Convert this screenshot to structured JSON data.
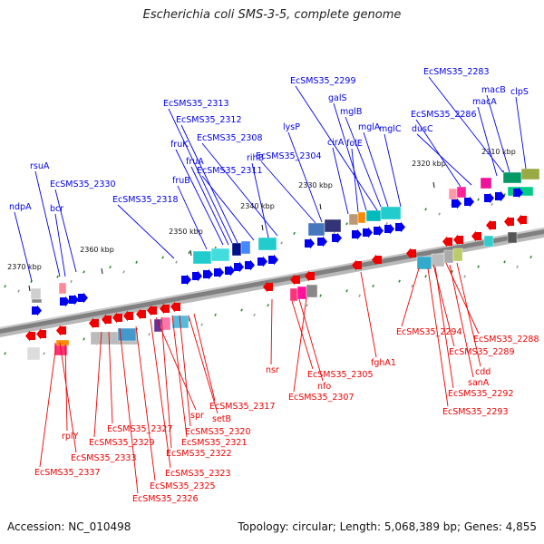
{
  "title": "Escherichia coli SMS-3-5, complete genome",
  "footer": {
    "accession": "Accession: NC_010498",
    "topology": "Topology: circular; Length: 5,068,389 bp; Genes: 4,855"
  },
  "colors": {
    "forward": "#0000ee",
    "reverse": "#ee0000",
    "backbone": "#808080"
  },
  "ticks": [
    "2310 kbp",
    "2320 kbp",
    "2330 kbp",
    "2340 kbp",
    "2350 kbp",
    "2360 kbp",
    "2370 kbp"
  ],
  "forward_labels": [
    "ndpA",
    "rsuA",
    "bcr",
    "EcSMS35_2330",
    "EcSMS35_2318",
    "fruB",
    "fruK",
    "fruA",
    "EcSMS35_2313",
    "EcSMS35_2312",
    "EcSMS35_2311",
    "rihB",
    "EcSMS35_2308",
    "EcSMS35_2304",
    "lysP",
    "cirA",
    "folE",
    "EcSMS35_2299",
    "galS",
    "mglB",
    "mglA",
    "mglC",
    "EcSMS35_2286",
    "dusC",
    "EcSMS35_2283",
    "macB",
    "macA",
    "clpS"
  ],
  "reverse_labels": [
    "rplY",
    "EcSMS35_2337",
    "EcSMS35_2333",
    "EcSMS35_2329",
    "EcSMS35_2327",
    "EcSMS35_2326",
    "EcSMS35_2325",
    "EcSMS35_2323",
    "spr",
    "EcSMS35_2322",
    "EcSMS35_2321",
    "EcSMS35_2320",
    "setB",
    "EcSMS35_2317",
    "nsr",
    "EcSMS35_2305",
    "nfo",
    "EcSMS35_2307",
    "fghA1",
    "EcSMS35_2294",
    "EcSMS35_2289",
    "EcSMS35_2288",
    "cdd",
    "sanA",
    "EcSMS35_2292",
    "EcSMS35_2293"
  ]
}
